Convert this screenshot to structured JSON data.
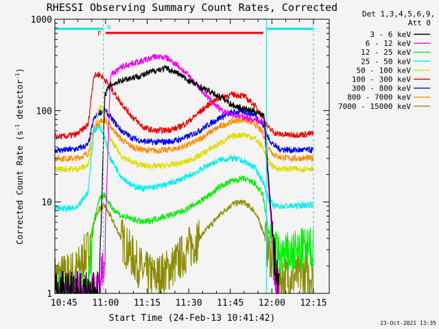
{
  "chart_data": {
    "type": "line",
    "title": "RHESSI Observing Summary Count Rates, Corrected",
    "xlabel": "Start Time (24-Feb-13 10:41:42)",
    "ylabel_prefix": "Corrected Count Rate (s",
    "ylabel_sup": "-1",
    "ylabel_suffix": " detector",
    "ylabel_end": ")",
    "x_unit": "minutes after 10:41:42",
    "xlim": [
      0,
      99
    ],
    "ylim": [
      1,
      1000
    ],
    "yscale": "log",
    "x_ticks": [
      {
        "x": 3.3,
        "label": "10:45"
      },
      {
        "x": 18.3,
        "label": "11:00"
      },
      {
        "x": 33.3,
        "label": "11:15"
      },
      {
        "x": 48.3,
        "label": "11:30"
      },
      {
        "x": 63.3,
        "label": "11:45"
      },
      {
        "x": 78.3,
        "label": "12:00"
      },
      {
        "x": 93.3,
        "label": "12:15"
      }
    ],
    "y_ticks": [
      {
        "y": 1,
        "label": "1"
      },
      {
        "y": 10,
        "label": "10"
      },
      {
        "y": 100,
        "label": "100"
      },
      {
        "y": 1000,
        "label": "1000"
      }
    ],
    "legend_title": [
      "Det 1,3,4,5,6,9,",
      "Att 0"
    ],
    "legend_position": "right",
    "night_lines_x": [
      17.5,
      76.3,
      93.3
    ],
    "night_bar_color": "#00e5ee",
    "night_bars": [
      [
        0,
        17.5
      ],
      [
        76.3,
        93.3
      ]
    ],
    "flare_bar": {
      "x": [
        18.3,
        75.2
      ],
      "label": "F",
      "color": "#ee0000"
    },
    "saa_marker": {
      "x": 18.3,
      "label": "N"
    },
    "series": [
      {
        "name": "3 - 6 keV",
        "color": "#000000",
        "x": [
          0,
          14,
          16,
          18,
          20,
          24,
          28,
          32,
          36,
          40,
          44,
          48,
          52,
          56,
          60,
          64,
          68,
          72,
          75.5,
          77,
          78.5,
          79.5,
          81
        ],
        "y": [
          1,
          1,
          1,
          150,
          190,
          215,
          230,
          245,
          275,
          290,
          260,
          215,
          185,
          160,
          140,
          115,
          105,
          98,
          90,
          20,
          5,
          2,
          1
        ]
      },
      {
        "name": "6 - 12 keV",
        "color": "#ee00ee",
        "x": [
          0,
          14,
          16,
          18,
          20,
          24,
          28,
          32,
          36,
          40,
          44,
          48,
          52,
          56,
          60,
          64,
          68,
          72,
          75.5,
          77,
          78.5,
          79.5,
          81
        ],
        "y": [
          1,
          1,
          1,
          3,
          240,
          300,
          330,
          350,
          390,
          380,
          320,
          245,
          180,
          130,
          100,
          90,
          85,
          80,
          75,
          15,
          4,
          1.5,
          1
        ]
      },
      {
        "name": "12 - 25 keV",
        "color": "#00ee00",
        "x": [
          0,
          4,
          8,
          12,
          14,
          16,
          18,
          20,
          24,
          28,
          32,
          36,
          40,
          44,
          48,
          52,
          56,
          60,
          64,
          68,
          72,
          75,
          77,
          79,
          81,
          85,
          90,
          93.3
        ],
        "y": [
          1,
          1,
          1,
          1,
          6,
          11,
          12,
          9,
          7,
          6.5,
          6,
          6.5,
          7,
          7.5,
          8.5,
          10,
          12,
          15,
          17,
          18,
          16,
          12,
          5,
          3,
          2.5,
          2.7,
          3,
          3
        ]
      },
      {
        "name": "25 - 50 keV",
        "color": "#00eeee",
        "x": [
          0,
          4,
          8,
          12,
          14,
          16,
          18,
          20,
          24,
          28,
          32,
          36,
          40,
          44,
          48,
          52,
          56,
          60,
          64,
          68,
          72,
          75,
          77,
          79,
          81,
          85,
          90,
          93.3
        ],
        "y": [
          8.5,
          8.5,
          8.5,
          13,
          60,
          68,
          50,
          30,
          19,
          15,
          14,
          14.5,
          15.5,
          17,
          19,
          22,
          26,
          29,
          30,
          28,
          24,
          17,
          11,
          9,
          9,
          9,
          9.2,
          9.5
        ]
      },
      {
        "name": "50 - 100 keV",
        "color": "#dddd00",
        "x": [
          0,
          4,
          8,
          12,
          14,
          16,
          18,
          20,
          24,
          28,
          32,
          36,
          40,
          44,
          48,
          52,
          56,
          60,
          64,
          68,
          72,
          75,
          77,
          79,
          81,
          85,
          90,
          93.3
        ],
        "y": [
          23,
          23,
          23,
          25,
          60,
          110,
          95,
          48,
          32,
          27,
          25,
          24.5,
          25,
          26,
          28,
          32,
          38,
          45,
          52,
          55,
          50,
          40,
          28,
          24,
          23,
          23,
          23,
          23.5
        ]
      },
      {
        "name": "100 - 300 keV",
        "color": "#ee0000",
        "x": [
          0,
          4,
          8,
          12,
          14,
          16,
          18,
          20,
          24,
          28,
          32,
          36,
          40,
          44,
          48,
          52,
          56,
          60,
          64,
          68,
          72,
          75,
          77,
          79,
          81,
          85,
          90,
          93.3
        ],
        "y": [
          52,
          52,
          55,
          70,
          240,
          250,
          220,
          180,
          120,
          85,
          65,
          60,
          61,
          64,
          75,
          95,
          120,
          140,
          150,
          145,
          115,
          85,
          65,
          58,
          55,
          54,
          55,
          56
        ]
      },
      {
        "name": "300 - 800 keV",
        "color": "#0000ee",
        "x": [
          0,
          4,
          8,
          12,
          14,
          16,
          18,
          20,
          24,
          28,
          32,
          36,
          40,
          44,
          48,
          52,
          56,
          60,
          64,
          68,
          72,
          75,
          77,
          79,
          81,
          85,
          90,
          93.3
        ],
        "y": [
          37,
          37,
          38,
          42,
          80,
          95,
          100,
          85,
          60,
          50,
          46,
          45,
          45.5,
          47,
          52,
          60,
          72,
          85,
          95,
          98,
          90,
          70,
          50,
          42,
          38,
          37,
          37,
          37
        ]
      },
      {
        "name": "800 - 7000 keV",
        "color": "#ff8c00",
        "x": [
          0,
          4,
          8,
          12,
          14,
          16,
          18,
          20,
          24,
          28,
          32,
          36,
          40,
          44,
          48,
          52,
          56,
          60,
          64,
          68,
          72,
          75,
          77,
          79,
          81,
          85,
          90,
          93.3
        ],
        "y": [
          30,
          30,
          30,
          34,
          65,
          75,
          80,
          68,
          48,
          40,
          37,
          36.5,
          37,
          38.5,
          42,
          48,
          58,
          68,
          76,
          80,
          72,
          57,
          40,
          33,
          31,
          30,
          30,
          30
        ]
      },
      {
        "name": "7000 - 15000 keV",
        "color": "#8b8b00",
        "x": [
          0,
          4,
          8,
          12,
          14,
          16,
          18,
          20,
          24,
          28,
          32,
          36,
          40,
          44,
          48,
          52,
          56,
          60,
          64,
          68,
          72,
          75,
          77,
          79,
          81,
          85,
          90,
          93.3
        ],
        "y": [
          1.5,
          1.6,
          1.8,
          3,
          6,
          8.5,
          9,
          7,
          4,
          2.5,
          1.7,
          1.5,
          1.7,
          2.2,
          3,
          4,
          5.5,
          7.5,
          9.5,
          10,
          8,
          5,
          3,
          2,
          1.5,
          1.5,
          1.6,
          1.6
        ]
      }
    ]
  },
  "footer": {
    "timestamp": "23-Oct-2021 13:35"
  }
}
